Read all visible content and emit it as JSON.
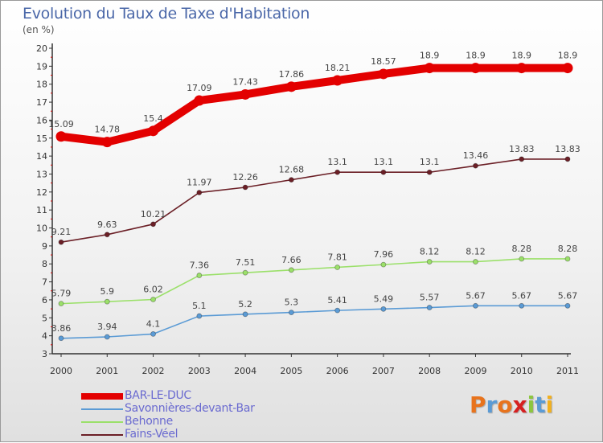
{
  "chart_data": {
    "type": "line",
    "title": "Evolution du Taux de Taxe d'Habitation",
    "subtitle": "(en %)",
    "xlabel": "",
    "ylabel": "",
    "x": [
      "2000",
      "2001",
      "2002",
      "2003",
      "2004",
      "2005",
      "2006",
      "2007",
      "2008",
      "2009",
      "2010",
      "2011"
    ],
    "yticks": [
      "3",
      "4",
      "5",
      "6",
      "7",
      "8",
      "9",
      "10",
      "11",
      "12",
      "13",
      "14",
      "15",
      "16",
      "17",
      "18",
      "19",
      "20"
    ],
    "ylim": [
      3,
      20
    ],
    "grid": false,
    "legend_position": "bottom-left",
    "series": [
      {
        "name": "BAR-LE-DUC",
        "color": "#e30000",
        "values": [
          15.09,
          14.78,
          15.4,
          17.09,
          17.43,
          17.86,
          18.21,
          18.57,
          18.9,
          18.9,
          18.9,
          18.9
        ],
        "labels": [
          "15.09",
          "14.78",
          "15.4",
          "17.09",
          "17.43",
          "17.86",
          "18.21",
          "18.57",
          "18.9",
          "18.9",
          "18.9",
          "18.9"
        ]
      },
      {
        "name": "Savonnières-devant-Bar",
        "color": "#5b9bd5",
        "values": [
          3.86,
          3.94,
          4.1,
          5.1,
          5.2,
          5.3,
          5.41,
          5.49,
          5.57,
          5.67,
          5.67,
          5.67
        ],
        "labels": [
          "3.86",
          "3.94",
          "4.1",
          "5.1",
          "5.2",
          "5.3",
          "5.41",
          "5.49",
          "5.57",
          "5.67",
          "5.67",
          "5.67"
        ]
      },
      {
        "name": "Behonne",
        "color": "#9be06a",
        "values": [
          5.79,
          5.9,
          6.02,
          7.36,
          7.51,
          7.66,
          7.81,
          7.96,
          8.12,
          8.12,
          8.28,
          8.28
        ],
        "labels": [
          "5.79",
          "5.9",
          "6.02",
          "7.36",
          "7.51",
          "7.66",
          "7.81",
          "7.96",
          "8.12",
          "8.12",
          "8.28",
          "8.28"
        ]
      },
      {
        "name": "Fains-Véel",
        "color": "#6b1f26",
        "values": [
          9.21,
          9.63,
          10.21,
          11.97,
          12.26,
          12.68,
          13.1,
          13.1,
          13.1,
          13.46,
          13.83,
          13.83
        ],
        "labels": [
          "9.21",
          "9.63",
          "10.21",
          "11.97",
          "12.26",
          "12.68",
          "13.1",
          "13.1",
          "13.1",
          "13.46",
          "13.83",
          "13.83"
        ]
      }
    ]
  },
  "legend": [
    {
      "label": "BAR-LE-DUC",
      "color": "#e30000"
    },
    {
      "label": "Savonnières-devant-Bar",
      "color": "#5b9bd5"
    },
    {
      "label": "Behonne",
      "color": "#9be06a"
    },
    {
      "label": "Fains-Véel",
      "color": "#6b1f26"
    }
  ],
  "logo": {
    "text": "Proxiti",
    "letters": [
      {
        "char": "P",
        "color": "#e8731c"
      },
      {
        "char": "r",
        "color": "#5b9bd5"
      },
      {
        "char": "o",
        "color": "#e8731c"
      },
      {
        "char": "x",
        "color": "#d62020"
      },
      {
        "char": "i",
        "color": "#8cc63f"
      },
      {
        "char": "t",
        "color": "#5b9bd5"
      },
      {
        "char": "i",
        "color": "#f2b01e"
      }
    ]
  }
}
